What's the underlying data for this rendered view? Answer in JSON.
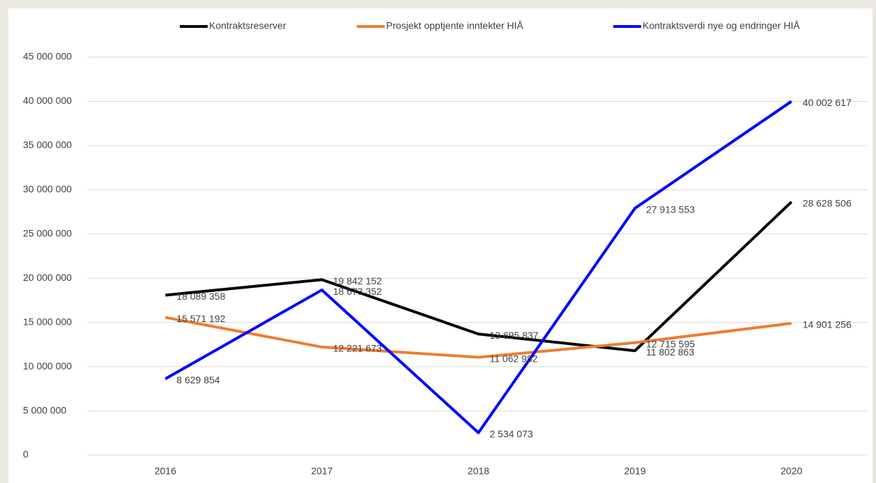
{
  "chart_data": {
    "type": "line",
    "categories": [
      "2016",
      "2017",
      "2018",
      "2019",
      "2020"
    ],
    "series": [
      {
        "name": "Kontraktsreserver",
        "color": "#000000",
        "values": [
          18089358,
          19842152,
          13695837,
          11802863,
          28628506
        ],
        "value_labels": [
          "18 089 358",
          "19 842 152",
          "13 695 837",
          "11 802 863",
          "28 628 506"
        ]
      },
      {
        "name": "Prosjekt opptjente inntekter HIÅ",
        "color": "#ed7d31",
        "values": [
          15571192,
          12221673,
          11062982,
          12715595,
          14901256
        ],
        "value_labels": [
          "15 571 192",
          "12 221 673",
          "11 062 982",
          "12 715 595",
          "14 901 256"
        ]
      },
      {
        "name": "Kontraktsverdi nye og endringer HIÅ",
        "color": "#0000ff",
        "values": [
          8629854,
          18673352,
          2534073,
          27913553,
          40002617
        ],
        "value_labels": [
          "8 629 854",
          "18 673 352",
          "2 534 073",
          "27 913 553",
          "40 002 617"
        ]
      }
    ],
    "ylim": [
      0,
      45000000
    ],
    "yticks": [
      0,
      {
        "value": 5000000,
        "label": "5 000 000"
      },
      {
        "value": 10000000,
        "label": "10 000 000"
      },
      {
        "value": 15000000,
        "label": "15 000 000"
      },
      {
        "value": 20000000,
        "label": "20 000 000"
      },
      {
        "value": 25000000,
        "label": "25 000 000"
      },
      {
        "value": 30000000,
        "label": "30 000 000"
      },
      {
        "value": 35000000,
        "label": "35 000 000"
      },
      {
        "value": 40000000,
        "label": "40 000 000"
      },
      {
        "value": 45000000,
        "label": "45 000 000"
      }
    ],
    "grid": true,
    "legend": "top"
  }
}
